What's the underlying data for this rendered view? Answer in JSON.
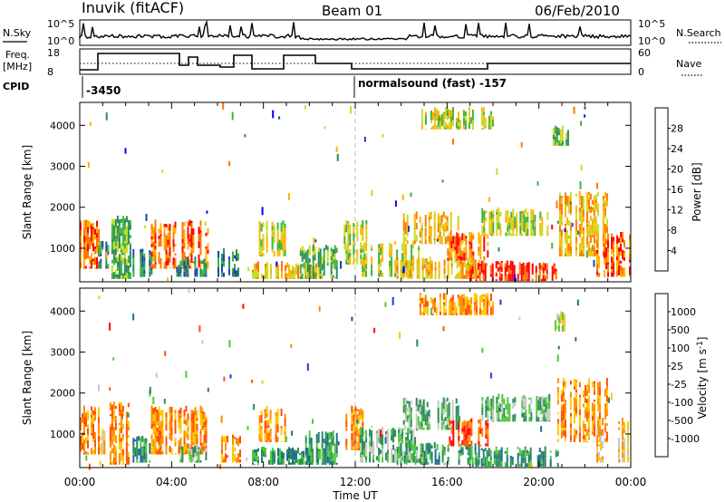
{
  "header": {
    "station": "Inuvik (fitACF)",
    "beam": "Beam 01",
    "date": "06/Feb/2010"
  },
  "summary": {
    "nsky_label": "N.Sky",
    "nsky_ticks": [
      "10^5",
      "10^0"
    ],
    "nsearch_label": "N.Search",
    "nsearch_ticks": [
      "10^5",
      "10^0"
    ],
    "freq_label_line1": "Freq.",
    "freq_label_line2": "[MHz]",
    "freq_ticks": [
      "18",
      "8"
    ],
    "nave_label": "Nave",
    "nave_ticks": [
      "60",
      "0"
    ],
    "cpid_label": "CPID",
    "cpid_left": "-3450",
    "cpid_right": "normalsound (fast) -157"
  },
  "chart_data": [
    {
      "type": "heatmap",
      "panel": "power",
      "ylabel": "Slant Range [km]",
      "xlabel": "",
      "x_ticks": [
        "00:00",
        "04:00",
        "08:00",
        "12:00",
        "16:00",
        "20:00",
        "00:00"
      ],
      "y_ticks": [
        "1000",
        "2000",
        "3000",
        "4000"
      ],
      "xlim_hours": [
        0,
        24
      ],
      "ylim_km": [
        180,
        4560
      ],
      "colorbar": {
        "label": "Power [dB]",
        "ticks": [
          "4",
          "8",
          "12",
          "16",
          "20",
          "24",
          "28"
        ],
        "colors": [
          "#0000ff",
          "#1e46a8",
          "#2a8c5a",
          "#3cb43c",
          "#c8dc28",
          "#ffb400",
          "#ff7800",
          "#ff0000"
        ]
      },
      "echo_regions": [
        {
          "t": [
            0.0,
            0.8
          ],
          "r": [
            500,
            1700
          ],
          "level": 6
        },
        {
          "t": [
            0.8,
            1.2
          ],
          "r": [
            500,
            1200
          ],
          "level": 2
        },
        {
          "t": [
            1.3,
            2.2
          ],
          "r": [
            250,
            1800
          ],
          "level": 3
        },
        {
          "t": [
            2.3,
            3.1
          ],
          "r": [
            300,
            1000
          ],
          "level": 2
        },
        {
          "t": [
            3.1,
            5.7
          ],
          "r": [
            500,
            1700
          ],
          "level": 6
        },
        {
          "t": [
            4.2,
            5.5
          ],
          "r": [
            300,
            800
          ],
          "level": 2
        },
        {
          "t": [
            6.0,
            7.0
          ],
          "r": [
            300,
            1000
          ],
          "level": 2
        },
        {
          "t": [
            7.5,
            10.5
          ],
          "r": [
            250,
            700
          ],
          "level": 5
        },
        {
          "t": [
            7.8,
            9.0
          ],
          "r": [
            800,
            1700
          ],
          "level": 4
        },
        {
          "t": [
            9.5,
            11.2
          ],
          "r": [
            250,
            1100
          ],
          "level": 3
        },
        {
          "t": [
            11.5,
            12.5
          ],
          "r": [
            600,
            1700
          ],
          "level": 4
        },
        {
          "t": [
            12.2,
            14.8
          ],
          "r": [
            300,
            1200
          ],
          "level": 4
        },
        {
          "t": [
            13.8,
            17.5
          ],
          "r": [
            250,
            800
          ],
          "level": 5
        },
        {
          "t": [
            14.0,
            16.5
          ],
          "r": [
            1100,
            1900
          ],
          "level": 5
        },
        {
          "t": [
            16.0,
            17.8
          ],
          "r": [
            700,
            1400
          ],
          "level": 6
        },
        {
          "t": [
            17.0,
            20.8
          ],
          "r": [
            200,
            700
          ],
          "level": 7
        },
        {
          "t": [
            17.5,
            20.5
          ],
          "r": [
            1300,
            2000
          ],
          "level": 4
        },
        {
          "t": [
            20.8,
            23.0
          ],
          "r": [
            800,
            2400
          ],
          "level": 5
        },
        {
          "t": [
            22.5,
            24.0
          ],
          "r": [
            300,
            1400
          ],
          "level": 6
        },
        {
          "t": [
            14.8,
            18.0
          ],
          "r": [
            3900,
            4450
          ],
          "level": 4
        },
        {
          "t": [
            20.6,
            21.3
          ],
          "r": [
            3500,
            4000
          ],
          "level": 3
        }
      ]
    },
    {
      "type": "heatmap",
      "panel": "velocity",
      "ylabel": "Slant Range [km]",
      "xlabel": "Time UT",
      "x_ticks": [
        "00:00",
        "04:00",
        "08:00",
        "12:00",
        "16:00",
        "20:00",
        "00:00"
      ],
      "y_ticks": [
        "1000",
        "2000",
        "3000",
        "4000"
      ],
      "xlim_hours": [
        0,
        24
      ],
      "ylim_km": [
        180,
        4560
      ],
      "colorbar": {
        "label": "Velocity [m s^-1]",
        "ticks": [
          "1000",
          "500",
          "100",
          "25",
          "-25",
          "-100",
          "-500",
          "-1000"
        ],
        "colors": [
          "#1e3cc8",
          "#1e6e8c",
          "#2a8c5a",
          "#50c83c",
          "#c8c8c8",
          "#ffc800",
          "#ff8c00",
          "#ff5000",
          "#ff0000"
        ]
      },
      "echo_regions": [
        {
          "t": [
            0.0,
            0.8
          ],
          "r": [
            500,
            1700
          ],
          "v": 6
        },
        {
          "t": [
            0.8,
            1.2
          ],
          "r": [
            500,
            1200
          ],
          "v": 5
        },
        {
          "t": [
            1.3,
            2.2
          ],
          "r": [
            250,
            1800
          ],
          "v": 6
        },
        {
          "t": [
            2.3,
            3.1
          ],
          "r": [
            300,
            1000
          ],
          "v": 2
        },
        {
          "t": [
            3.1,
            5.7
          ],
          "r": [
            500,
            1700
          ],
          "v": 6
        },
        {
          "t": [
            4.2,
            5.5
          ],
          "r": [
            300,
            800
          ],
          "v": 3
        },
        {
          "t": [
            6.0,
            7.0
          ],
          "r": [
            300,
            1000
          ],
          "v": 6
        },
        {
          "t": [
            7.5,
            10.5
          ],
          "r": [
            250,
            700
          ],
          "v": 2
        },
        {
          "t": [
            7.8,
            9.0
          ],
          "r": [
            800,
            1700
          ],
          "v": 6
        },
        {
          "t": [
            9.5,
            11.2
          ],
          "r": [
            250,
            1100
          ],
          "v": 2
        },
        {
          "t": [
            11.5,
            12.5
          ],
          "r": [
            600,
            1700
          ],
          "v": 6
        },
        {
          "t": [
            12.2,
            14.8
          ],
          "r": [
            300,
            1200
          ],
          "v": 3
        },
        {
          "t": [
            13.8,
            17.5
          ],
          "r": [
            250,
            800
          ],
          "v": 2
        },
        {
          "t": [
            14.0,
            16.5
          ],
          "r": [
            1100,
            1900
          ],
          "v": 3
        },
        {
          "t": [
            16.0,
            17.8
          ],
          "r": [
            700,
            1400
          ],
          "v": 7
        },
        {
          "t": [
            17.0,
            20.8
          ],
          "r": [
            200,
            700
          ],
          "v": 2
        },
        {
          "t": [
            17.5,
            20.5
          ],
          "r": [
            1300,
            2000
          ],
          "v": 3
        },
        {
          "t": [
            20.8,
            23.0
          ],
          "r": [
            800,
            2400
          ],
          "v": 6
        },
        {
          "t": [
            22.5,
            24.0
          ],
          "r": [
            300,
            1400
          ],
          "v": 5
        },
        {
          "t": [
            14.8,
            18.0
          ],
          "r": [
            3900,
            4450
          ],
          "v": 6
        },
        {
          "t": [
            20.6,
            21.3
          ],
          "r": [
            3500,
            4000
          ],
          "v": 4
        }
      ]
    }
  ]
}
